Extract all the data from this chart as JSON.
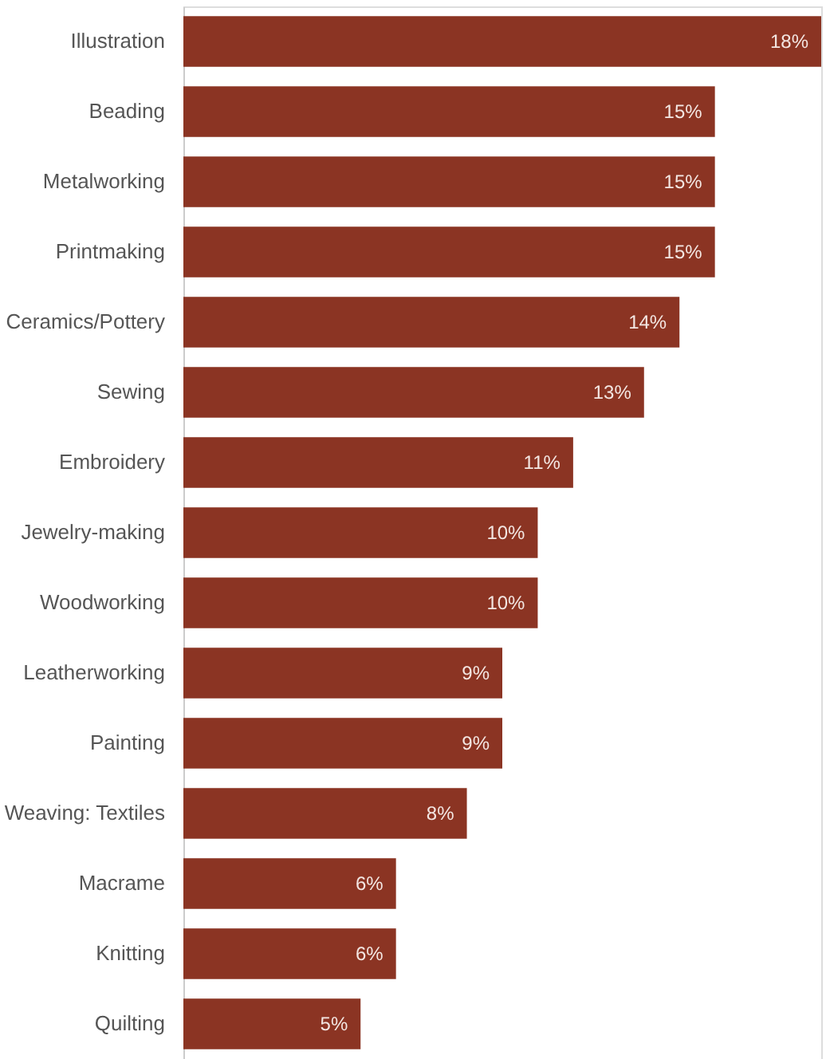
{
  "chart_data": {
    "type": "bar",
    "orientation": "horizontal",
    "categories": [
      "Illustration",
      "Beading",
      "Metalworking",
      "Printmaking",
      "Ceramics/Pottery",
      "Sewing",
      "Embroidery",
      "Jewelry-making",
      "Woodworking",
      "Leatherworking",
      "Painting",
      "Weaving: Textiles",
      "Macrame",
      "Knitting",
      "Quilting"
    ],
    "values": [
      18,
      15,
      15,
      15,
      14,
      13,
      11,
      10,
      10,
      9,
      9,
      8,
      6,
      6,
      5
    ],
    "value_labels": [
      "18%",
      "15%",
      "15%",
      "15%",
      "14%",
      "13%",
      "11%",
      "10%",
      "10%",
      "9%",
      "9%",
      "8%",
      "6%",
      "6%",
      "5%"
    ],
    "color": "#8b3423"
  }
}
